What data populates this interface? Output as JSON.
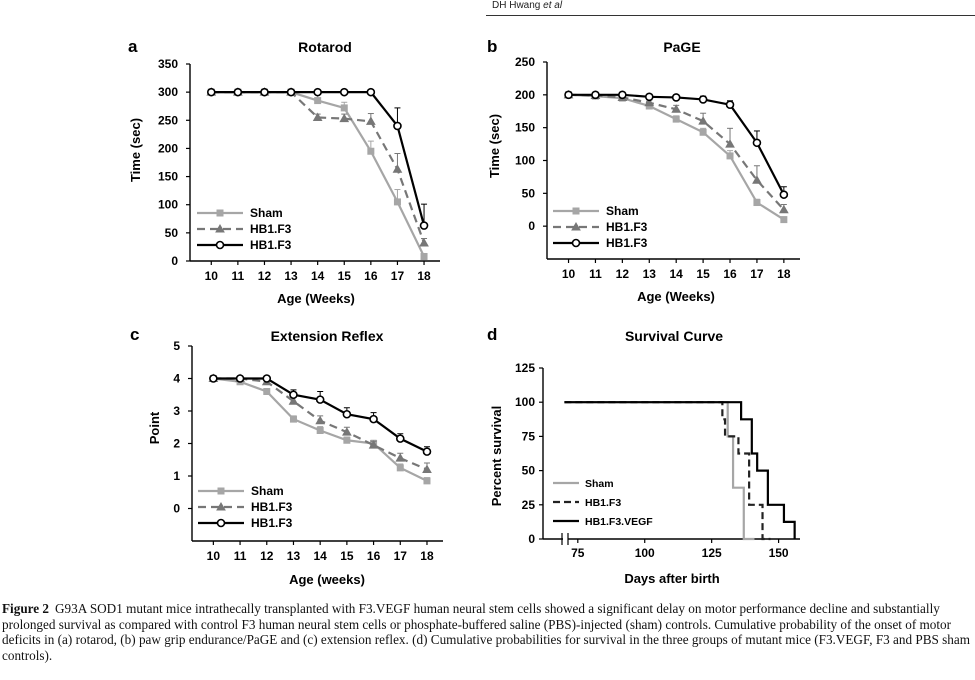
{
  "header": {
    "author": "DH Hwang",
    "etal": "et al"
  },
  "chart_data": [
    {
      "panel": "a",
      "type": "line",
      "title": "Rotarod",
      "xlabel": "Age (Weeks)",
      "ylabel": "Time (sec)",
      "x": [
        10,
        11,
        12,
        13,
        14,
        15,
        16,
        17,
        18
      ],
      "xlim": [
        9.2,
        18.6
      ],
      "ylim": [
        0,
        350
      ],
      "yticks": [
        0,
        50,
        100,
        150,
        200,
        250,
        300,
        350
      ],
      "series": [
        {
          "name": "Sham",
          "color": "#a6a6a6",
          "marker": "square",
          "dash": "solid",
          "values": [
            300,
            300,
            300,
            300,
            285,
            272,
            195,
            105,
            8
          ],
          "err": [
            0,
            0,
            0,
            0,
            12,
            10,
            18,
            22,
            4
          ]
        },
        {
          "name": "HB1.F3",
          "color": "#777777",
          "marker": "triangle",
          "dash": "dashed",
          "values": [
            300,
            300,
            300,
            300,
            255,
            253,
            248,
            163,
            32
          ],
          "err": [
            0,
            0,
            0,
            0,
            6,
            8,
            14,
            28,
            8
          ]
        },
        {
          "name": "HB1.F3",
          "color": "#000000",
          "marker": "circle",
          "dash": "solid",
          "values": [
            300,
            300,
            300,
            300,
            300,
            300,
            300,
            240,
            63
          ],
          "err": [
            0,
            0,
            0,
            0,
            0,
            0,
            0,
            32,
            38
          ]
        }
      ],
      "legend": "lower-left"
    },
    {
      "panel": "b",
      "type": "line",
      "title": "PaGE",
      "xlabel": "Age (Weeks)",
      "ylabel": "Time (sec)",
      "x": [
        10,
        11,
        12,
        13,
        14,
        15,
        16,
        17,
        18
      ],
      "xlim": [
        9.2,
        18.6
      ],
      "ylim": [
        -50,
        250
      ],
      "yticks": [
        0,
        50,
        100,
        150,
        200,
        250
      ],
      "series": [
        {
          "name": "Sham",
          "color": "#a6a6a6",
          "marker": "square",
          "dash": "solid",
          "values": [
            200,
            198,
            195,
            183,
            163,
            143,
            107,
            36,
            10
          ],
          "err": [
            0,
            0,
            0,
            3,
            5,
            6,
            8,
            5,
            3
          ]
        },
        {
          "name": "HB1.F3",
          "color": "#777777",
          "marker": "triangle",
          "dash": "dashed",
          "values": [
            200,
            199,
            196,
            188,
            178,
            160,
            125,
            70,
            25
          ],
          "err": [
            0,
            0,
            0,
            4,
            6,
            12,
            24,
            22,
            8
          ]
        },
        {
          "name": "HB1.F3",
          "color": "#000000",
          "marker": "circle",
          "dash": "solid",
          "values": [
            200,
            200,
            200,
            197,
            196,
            193,
            185,
            127,
            48
          ],
          "err": [
            0,
            0,
            0,
            0,
            3,
            5,
            6,
            18,
            12
          ]
        }
      ],
      "legend": "lower-left"
    },
    {
      "panel": "c",
      "type": "line",
      "title": "Extension Reflex",
      "xlabel": "Age (weeks)",
      "ylabel": "Point",
      "x": [
        10,
        11,
        12,
        13,
        14,
        15,
        16,
        17,
        18
      ],
      "xlim": [
        9.2,
        18.6
      ],
      "ylim": [
        -1,
        5
      ],
      "yticks": [
        0,
        1,
        2,
        3,
        4,
        5
      ],
      "series": [
        {
          "name": "Sham",
          "color": "#a6a6a6",
          "marker": "square",
          "dash": "solid",
          "values": [
            4,
            3.9,
            3.6,
            2.75,
            2.4,
            2.1,
            2.0,
            1.25,
            0.85
          ],
          "err": [
            0,
            0,
            0.05,
            0.1,
            0.12,
            0.1,
            0.1,
            0.12,
            0.1
          ]
        },
        {
          "name": "HB1.F3",
          "color": "#777777",
          "marker": "triangle",
          "dash": "dashed",
          "values": [
            4,
            4,
            3.9,
            3.3,
            2.7,
            2.35,
            1.95,
            1.55,
            1.2
          ],
          "err": [
            0,
            0,
            0.05,
            0.15,
            0.15,
            0.15,
            0.12,
            0.15,
            0.2
          ]
        },
        {
          "name": "HB1.F3",
          "color": "#000000",
          "marker": "circle",
          "dash": "solid",
          "values": [
            4,
            4,
            4,
            3.5,
            3.35,
            2.9,
            2.75,
            2.15,
            1.75
          ],
          "err": [
            0,
            0,
            0,
            0.15,
            0.25,
            0.2,
            0.2,
            0.15,
            0.15
          ]
        }
      ],
      "legend": "lower-left"
    },
    {
      "panel": "d",
      "type": "line",
      "title": "Survival Curve",
      "xlabel": "Days after birth",
      "ylabel": "Percent survival",
      "xticks": [
        75,
        100,
        125,
        150
      ],
      "xlim": [
        62,
        158
      ],
      "ylim": [
        0,
        125
      ],
      "yticks": [
        0,
        25,
        50,
        75,
        100,
        125
      ],
      "axis_break": true,
      "series": [
        {
          "name": "Sham",
          "color": "#a6a6a6",
          "dash": "solid",
          "steps": [
            [
              70,
              100
            ],
            [
              131,
              100
            ],
            [
              131,
              75
            ],
            [
              133,
              75
            ],
            [
              133,
              37.5
            ],
            [
              137,
              37.5
            ],
            [
              137,
              0
            ],
            [
              141,
              0
            ]
          ]
        },
        {
          "name": "HB1.F3",
          "color": "#222222",
          "dash": "dashed",
          "steps": [
            [
              70,
              100
            ],
            [
              129,
              100
            ],
            [
              129,
              87.5
            ],
            [
              130,
              87.5
            ],
            [
              130,
              75
            ],
            [
              135,
              75
            ],
            [
              135,
              62.5
            ],
            [
              139,
              62.5
            ],
            [
              139,
              25
            ],
            [
              144,
              25
            ],
            [
              144,
              0
            ],
            [
              147,
              0
            ]
          ]
        },
        {
          "name": "HB1.F3.VEGF",
          "color": "#000000",
          "dash": "solid",
          "steps": [
            [
              70,
              100
            ],
            [
              136,
              100
            ],
            [
              136,
              87.5
            ],
            [
              140,
              87.5
            ],
            [
              140,
              62.5
            ],
            [
              142,
              62.5
            ],
            [
              142,
              50
            ],
            [
              146,
              50
            ],
            [
              146,
              25
            ],
            [
              152,
              25
            ],
            [
              152,
              12.5
            ],
            [
              156,
              12.5
            ],
            [
              156,
              0
            ]
          ]
        }
      ],
      "legend": "lower-left"
    }
  ],
  "caption": {
    "label": "Figure 2",
    "text": "G93A SOD1 mutant mice intrathecally transplanted with F3.VEGF human neural stem cells showed a significant delay on motor performance decline and substantially prolonged survival as compared with control F3 human neural stem cells or phosphate-buffered saline (PBS)-injected (sham) controls. Cumulative probability of the onset of motor deficits in (a) rotarod, (b) paw grip endurance/PaGE and (c) extension reflex. (d) Cumulative probabilities for survival in the three groups of mutant mice (F3.VEGF, F3 and PBS sham controls)."
  }
}
